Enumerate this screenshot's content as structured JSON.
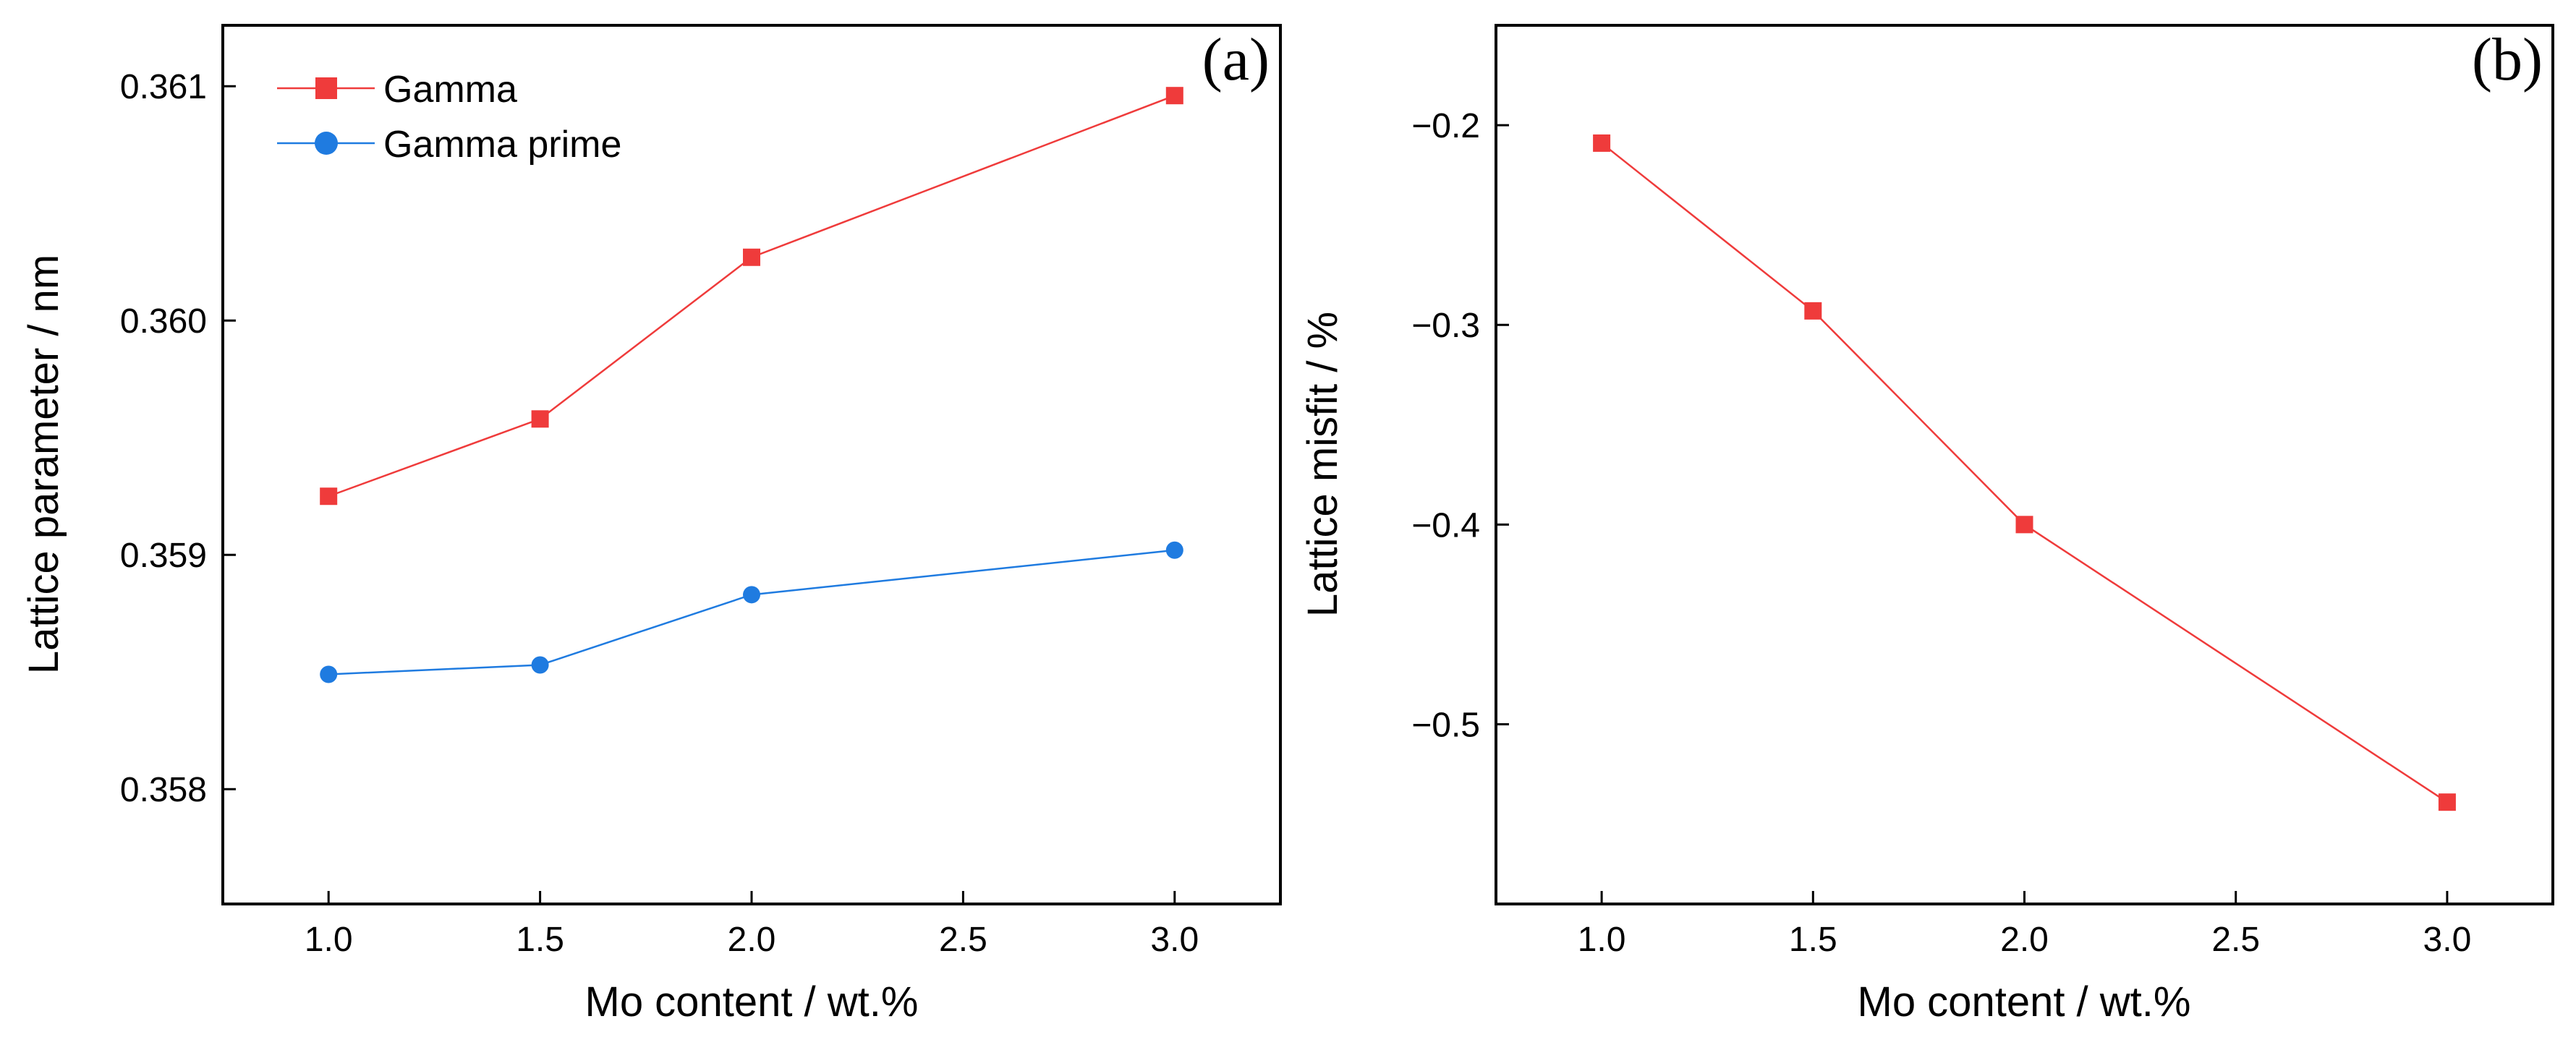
{
  "chart_data": [
    {
      "type": "line",
      "panel_label": "(a)",
      "xlabel": "Mo content / wt.%",
      "ylabel": "Lattice parameter / nm",
      "xlim": [
        0.75,
        3.25
      ],
      "ylim": [
        0.35751,
        0.36126
      ],
      "xticks": [
        1.0,
        1.5,
        2.0,
        2.5,
        3.0
      ],
      "xtick_labels": [
        "1.0",
        "1.5",
        "2.0",
        "2.5",
        "3.0"
      ],
      "yticks": [
        0.358,
        0.359,
        0.36,
        0.361
      ],
      "ytick_labels": [
        "0.358",
        "0.359",
        "0.360",
        "0.361"
      ],
      "legend_position": "top-left",
      "series": [
        {
          "name": "Gamma",
          "color": "#ef3b3b",
          "marker": "square",
          "x": [
            1.0,
            1.5,
            2.0,
            3.0
          ],
          "y": [
            0.35925,
            0.35958,
            0.36027,
            0.36096
          ]
        },
        {
          "name": "Gamma prime",
          "color": "#1f7be0",
          "marker": "circle",
          "x": [
            1.0,
            1.5,
            2.0,
            3.0
          ],
          "y": [
            0.35849,
            0.35853,
            0.35883,
            0.35902
          ]
        }
      ]
    },
    {
      "type": "line",
      "panel_label": "(b)",
      "xlabel": "Mo content / wt.%",
      "ylabel": "Lattice misfit / %",
      "xlim": [
        0.75,
        3.25
      ],
      "ylim": [
        -0.59,
        -0.15
      ],
      "xticks": [
        1.0,
        1.5,
        2.0,
        2.5,
        3.0
      ],
      "xtick_labels": [
        "1.0",
        "1.5",
        "2.0",
        "2.5",
        "3.0"
      ],
      "yticks": [
        -0.5,
        -0.4,
        -0.3,
        -0.2
      ],
      "ytick_labels": [
        "−0.5",
        "−0.4",
        "−0.3",
        "−0.2"
      ],
      "series": [
        {
          "name": "Lattice misfit",
          "color": "#ef3b3b",
          "marker": "square",
          "x": [
            1.0,
            1.5,
            2.0,
            3.0
          ],
          "y": [
            -0.209,
            -0.293,
            -0.4,
            -0.539
          ]
        }
      ]
    }
  ]
}
